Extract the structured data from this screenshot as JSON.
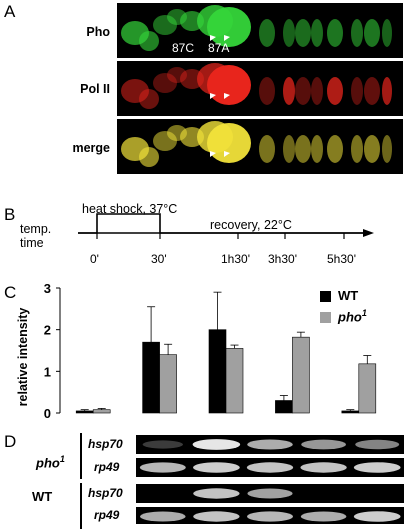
{
  "panels": {
    "a": "A",
    "b": "B",
    "c": "C",
    "d": "D"
  },
  "panel_a": {
    "rows": [
      "Pho",
      "Pol II",
      "merge"
    ],
    "band_labels": [
      "87C",
      "87A"
    ],
    "colors": {
      "pho": "#35d63a",
      "pol2": "#e8251c",
      "merge": "#f2e33a"
    }
  },
  "panel_b": {
    "pulse_label": "heat shock, 37°C",
    "recovery_label": "recovery, 22°C",
    "axis_label_1": "temp.",
    "axis_label_2": "time",
    "timepoints": [
      "0'",
      "30'",
      "1h30'",
      "3h30'",
      "5h30'"
    ]
  },
  "chart_data": {
    "type": "bar",
    "ylabel": "relative intensity",
    "ylim": [
      0,
      3
    ],
    "yticks": [
      "0",
      "1",
      "2",
      "3"
    ],
    "series": [
      {
        "name": "WT",
        "color": "#000000",
        "values": [
          0.05,
          1.7,
          2.0,
          0.3,
          0.05
        ],
        "errors": [
          0.03,
          0.85,
          0.9,
          0.12,
          0.03
        ]
      },
      {
        "name": "pho",
        "superscript": "1",
        "color": "#a0a0a0",
        "values": [
          0.08,
          1.4,
          1.55,
          1.82,
          1.18
        ],
        "errors": [
          0.03,
          0.25,
          0.08,
          0.12,
          0.2
        ]
      }
    ],
    "legend_position": "top-right"
  },
  "panel_d": {
    "groups": [
      {
        "genotype": "pho",
        "superscript": "1",
        "lanes": [
          {
            "gene": "hsp70",
            "bands": [
              0.05,
              0.95,
              0.7,
              0.6,
              0.5
            ]
          },
          {
            "gene": "rp49",
            "bands": [
              0.75,
              0.85,
              0.8,
              0.8,
              0.85
            ]
          }
        ]
      },
      {
        "genotype": "WT",
        "lanes": [
          {
            "gene": "hsp70",
            "bands": [
              0.0,
              0.8,
              0.65,
              0.0,
              0.0
            ]
          },
          {
            "gene": "rp49",
            "bands": [
              0.7,
              0.8,
              0.75,
              0.7,
              0.85
            ]
          }
        ]
      }
    ]
  }
}
